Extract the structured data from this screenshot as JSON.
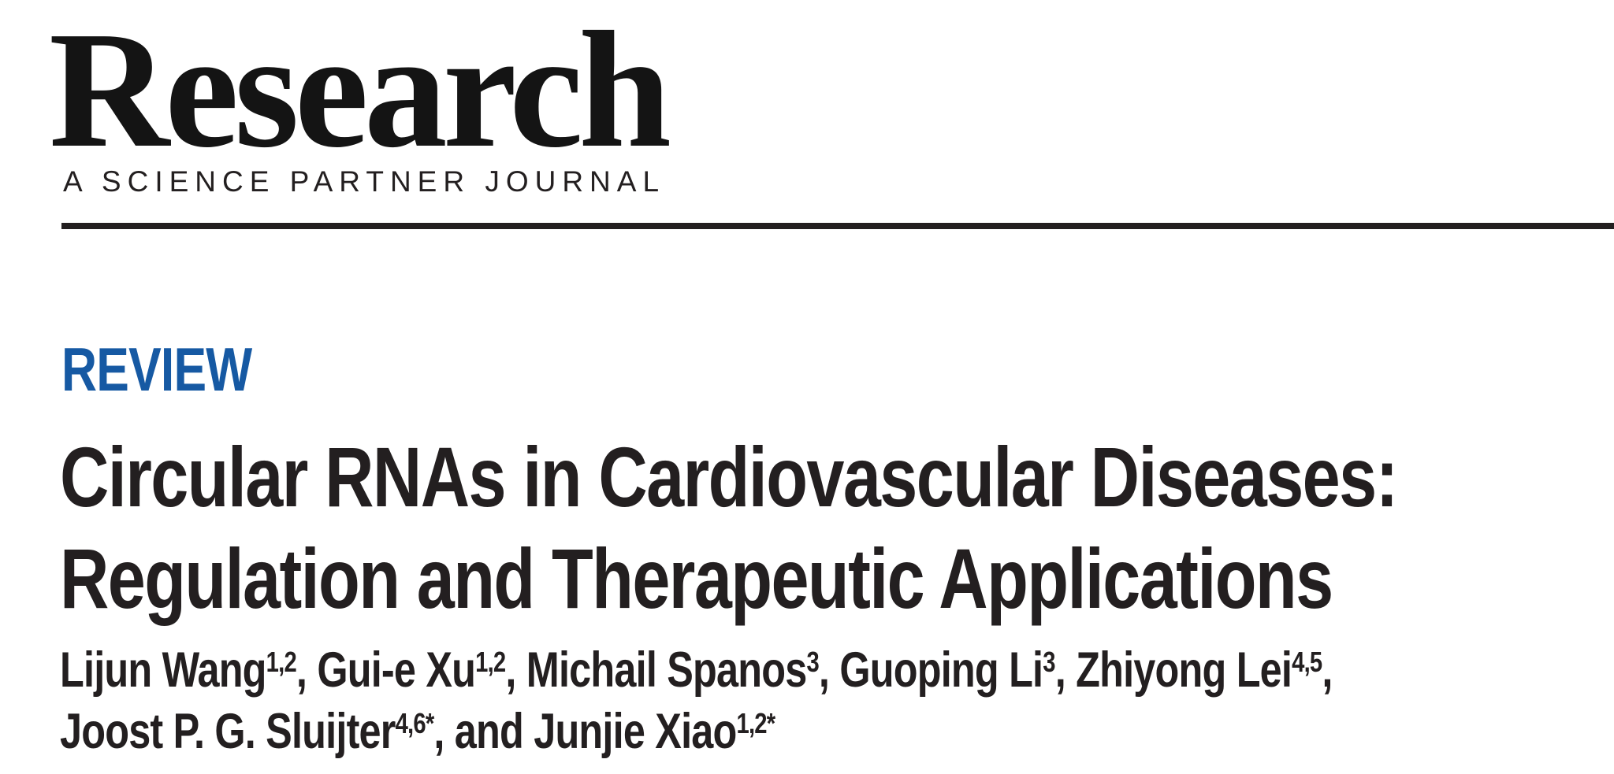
{
  "colors": {
    "accent_blue": "#1659a3",
    "ink": "#231f20"
  },
  "masthead": {
    "logo_text": "Research",
    "tagline": "A SCIENCE PARTNER JOURNAL"
  },
  "article": {
    "type_label": "REVIEW",
    "title_lines": [
      "Circular RNAs in Cardiovascular Diseases:",
      "Regulation and Therapeutic Applications"
    ],
    "author_lines": [
      [
        {
          "text": "Lijun Wang",
          "sup": "1,2"
        },
        {
          "text": ", Gui-e Xu",
          "sup": "1,2"
        },
        {
          "text": ", Michail Spanos",
          "sup": "3"
        },
        {
          "text": ", Guoping Li",
          "sup": "3"
        },
        {
          "text": ", Zhiyong Lei",
          "sup": "4,5"
        },
        {
          "text": ","
        }
      ],
      [
        {
          "text": "Joost P. G. Sluijter",
          "sup": "4,6*"
        },
        {
          "text": ", and Junjie Xiao",
          "sup": "1,2*"
        }
      ]
    ]
  }
}
